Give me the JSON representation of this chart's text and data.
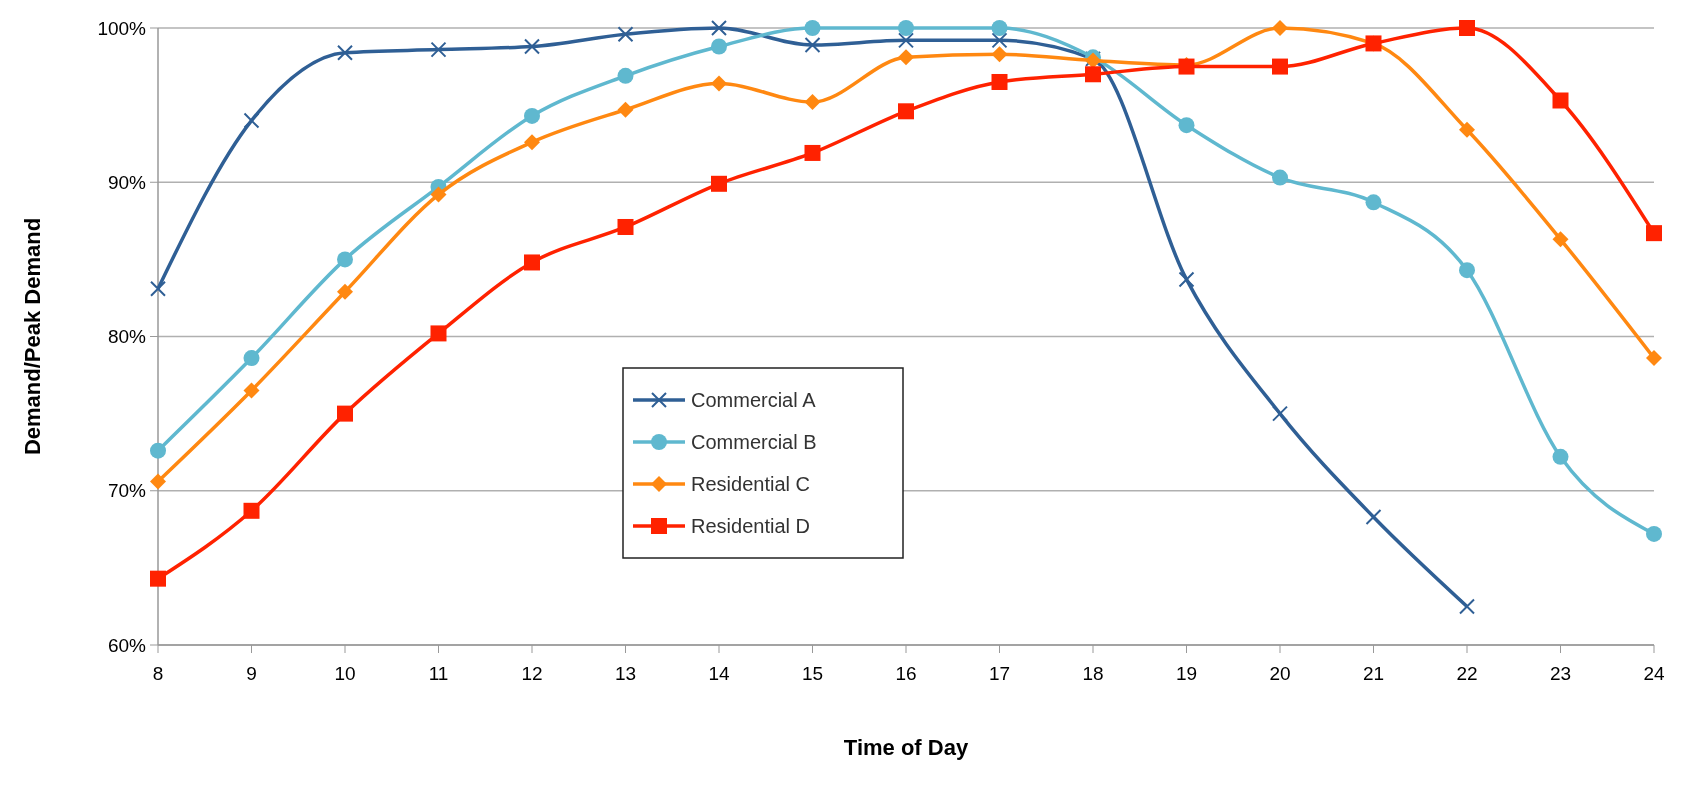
{
  "chart_data": {
    "type": "line",
    "xlabel": "Time of Day",
    "ylabel": "Demand/Peak Demand",
    "x": [
      8,
      9,
      10,
      11,
      12,
      13,
      14,
      15,
      16,
      17,
      18,
      19,
      20,
      21,
      22,
      23,
      24
    ],
    "xlim": [
      8,
      24
    ],
    "xticks": [
      8,
      9,
      10,
      11,
      12,
      13,
      14,
      15,
      16,
      17,
      18,
      19,
      20,
      21,
      22,
      23,
      24
    ],
    "ylim": [
      60,
      100
    ],
    "yticks": [
      {
        "value": 60,
        "label": "60%"
      },
      {
        "value": 70,
        "label": "70%"
      },
      {
        "value": 80,
        "label": "80%"
      },
      {
        "value": 90,
        "label": "90%"
      },
      {
        "value": 100,
        "label": "100%"
      }
    ],
    "grid": "y",
    "legend": "center",
    "line_style": "solid",
    "series": [
      {
        "name": "Commercial A",
        "color": "#2f5f95",
        "marker": "cross",
        "values": [
          83.1,
          94.0,
          98.4,
          98.6,
          98.8,
          99.6,
          100,
          98.9,
          99.2,
          99.2,
          98.0,
          83.7,
          75.0,
          68.3,
          62.5,
          null,
          null
        ]
      },
      {
        "name": "Commercial B",
        "color": "#5fb8cf",
        "marker": "circle",
        "values": [
          72.6,
          78.6,
          85.0,
          89.7,
          94.3,
          96.9,
          98.8,
          100,
          100,
          100,
          98.1,
          93.7,
          90.3,
          88.7,
          84.3,
          72.2,
          67.2
        ]
      },
      {
        "name": "Residential C",
        "color": "#ff8811",
        "marker": "diamond",
        "values": [
          70.6,
          76.5,
          82.9,
          89.2,
          92.6,
          94.7,
          96.4,
          95.2,
          98.1,
          98.3,
          97.9,
          97.6,
          100,
          99.0,
          93.4,
          86.3,
          78.6
        ]
      },
      {
        "name": "Residential D",
        "color": "#ff2200",
        "marker": "square",
        "values": [
          64.3,
          68.7,
          75.0,
          80.2,
          84.8,
          87.1,
          89.9,
          91.9,
          94.6,
          96.5,
          97.0,
          97.5,
          97.5,
          99.0,
          100,
          95.3,
          86.7
        ]
      }
    ]
  }
}
